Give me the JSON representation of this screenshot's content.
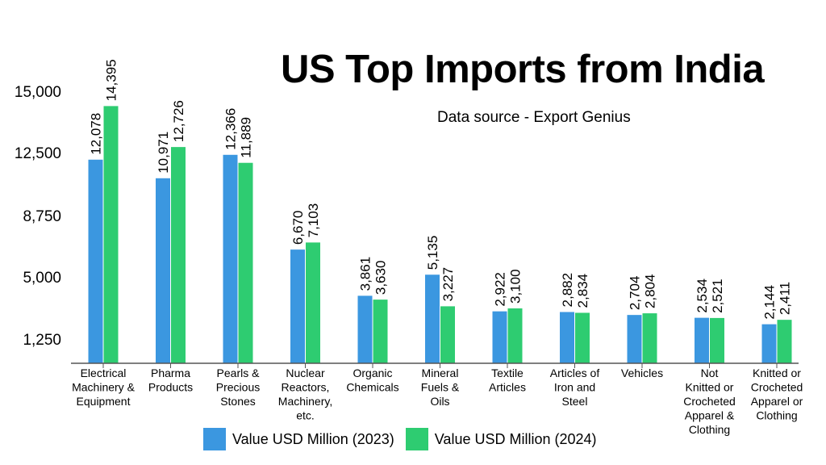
{
  "title": "US Top Imports from India",
  "subtitle": "Data source - Export Genius",
  "colors": {
    "series_2023": "#3b97e0",
    "series_2024": "#2ecc71",
    "axis": "#555555",
    "grid": "#d9d9d9"
  },
  "chart_data": {
    "type": "bar",
    "title": "US Top Imports from India",
    "subtitle": "Data source - Export Genius",
    "xlabel": "",
    "ylabel": "",
    "yticks": [
      1250,
      5000,
      8750,
      12500,
      15000
    ],
    "ytick_labels": [
      "1,250",
      "5,000",
      "8,750",
      "12,500",
      "15,000"
    ],
    "ylim": [
      0,
      16000
    ],
    "grid": false,
    "legend_position": "bottom",
    "categories": [
      "Electrical Machinery & Equipment",
      "Pharma Products",
      "Pearls & Precious Stones",
      "Nuclear Reactors, Machinery, etc.",
      "Organic Chemicals",
      "Mineral Fuels & Oils",
      "Textile Articles",
      "Articles of Iron and Steel",
      "Vehicles",
      "Not Knitted or Crocheted Apparel & Clothing",
      "Knitted or Crocheted Apparel or Clothing"
    ],
    "category_lines": [
      [
        "Electrical",
        "Machinery &",
        "Equipment"
      ],
      [
        "Pharma",
        "Products"
      ],
      [
        "Pearls &",
        "Precious",
        "Stones"
      ],
      [
        "Nuclear",
        "Reactors,",
        "Machinery,",
        "etc."
      ],
      [
        "Organic",
        "Chemicals"
      ],
      [
        "Mineral",
        "Fuels &",
        "Oils"
      ],
      [
        "Textile",
        "Articles"
      ],
      [
        "Articles of",
        "Iron and",
        "Steel"
      ],
      [
        "Vehicles"
      ],
      [
        "Not",
        "Knitted or",
        "Crocheted",
        "Apparel &",
        "Clothing"
      ],
      [
        "Knitted or",
        "Crocheted",
        "Apparel or",
        "Clothing"
      ]
    ],
    "series": [
      {
        "name": "Value USD Million (2023)",
        "values": [
          12078,
          10971,
          12366,
          6670,
          3861,
          5135,
          2922,
          2882,
          2704,
          2534,
          2144
        ],
        "labels": [
          "12,078",
          "10,971",
          "12,366",
          "6,670",
          "3,861",
          "5,135",
          "2,922",
          "2,882",
          "2,704",
          "2,534",
          "2,144"
        ]
      },
      {
        "name": "Value USD Million (2024)",
        "values": [
          14395,
          12726,
          11889,
          7103,
          3630,
          3227,
          3100,
          2834,
          2804,
          2521,
          2411
        ],
        "labels": [
          "14,395",
          "12,726",
          "11,889",
          "7,103",
          "3,630",
          "3,227",
          "3,100",
          "2,834",
          "2,804",
          "2,521",
          "2,411"
        ]
      }
    ]
  }
}
